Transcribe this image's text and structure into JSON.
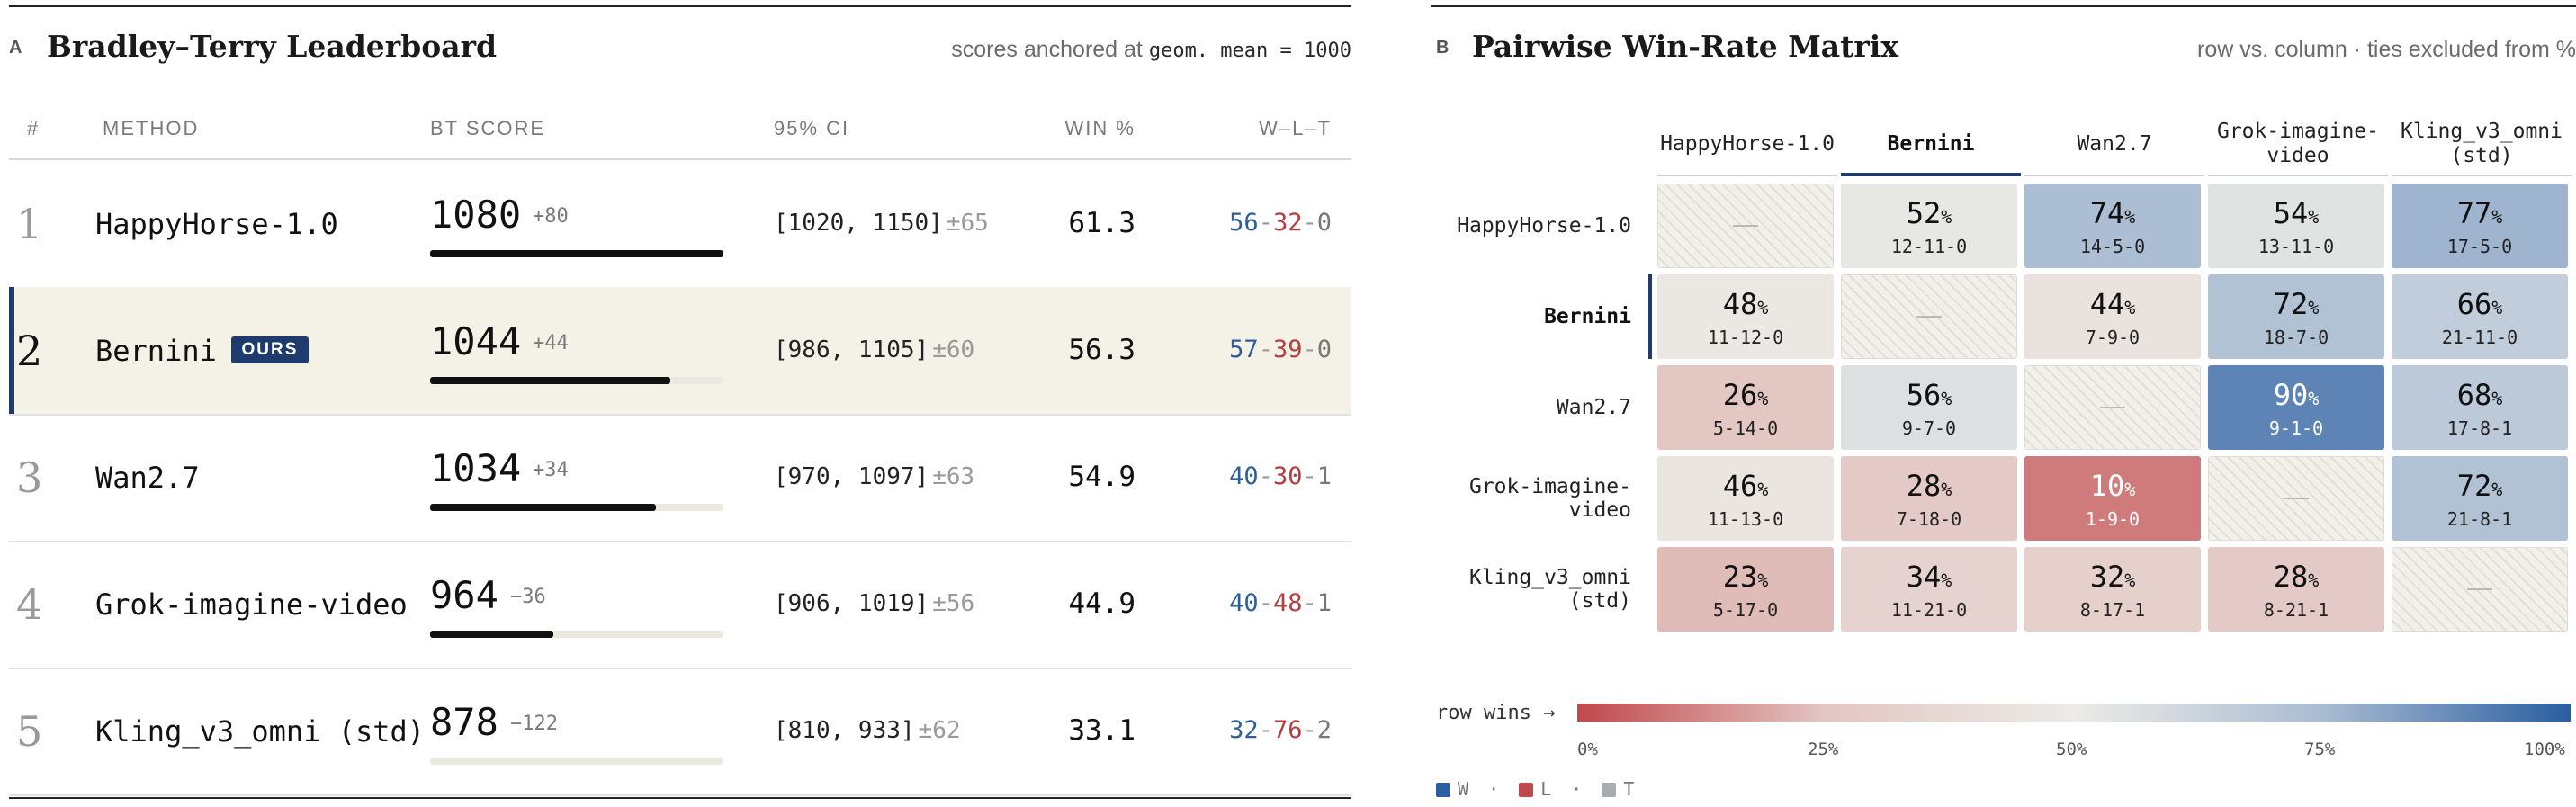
{
  "panel_a": {
    "letter": "A",
    "title": "Bradley–Terry Leaderboard",
    "note_prefix": "scores anchored at",
    "note_code": "geom. mean = 1000",
    "headers": {
      "rank": "#",
      "method": "METHOD",
      "score": "BT SCORE",
      "ci": "95% CI",
      "win": "WIN %",
      "wlt": "W–L–T"
    },
    "badge": "OURS",
    "rows": [
      {
        "rank": "1",
        "method": "HappyHorse-1.0",
        "score": "1080",
        "delta": "+80",
        "bar": 1.0,
        "ci": "[1020, 1150]",
        "pm": "±65",
        "win": "61.3",
        "w": "56",
        "l": "32",
        "t": "0",
        "ours": false
      },
      {
        "rank": "2",
        "method": "Bernini",
        "score": "1044",
        "delta": "+44",
        "bar": 0.82,
        "ci": "[986, 1105]",
        "pm": "±60",
        "win": "56.3",
        "w": "57",
        "l": "39",
        "t": "0",
        "ours": true
      },
      {
        "rank": "3",
        "method": "Wan2.7",
        "score": "1034",
        "delta": "+34",
        "bar": 0.77,
        "ci": "[970, 1097]",
        "pm": "±63",
        "win": "54.9",
        "w": "40",
        "l": "30",
        "t": "1",
        "ours": false
      },
      {
        "rank": "4",
        "method": "Grok-imagine-video",
        "score": "964",
        "delta": "−36",
        "bar": 0.42,
        "ci": "[906, 1019]",
        "pm": "±56",
        "win": "44.9",
        "w": "40",
        "l": "48",
        "t": "1",
        "ours": false
      },
      {
        "rank": "5",
        "method": "Kling_v3_omni (std)",
        "score": "878",
        "delta": "−122",
        "bar": 0.0,
        "ci": "[810, 933]",
        "pm": "±62",
        "win": "33.1",
        "w": "32",
        "l": "76",
        "t": "2",
        "ours": false
      }
    ]
  },
  "panel_b": {
    "letter": "B",
    "title": "Pairwise Win-Rate Matrix",
    "note": "row vs. column · ties excluded from %",
    "legend_label": "row wins →",
    "ticks": [
      "0%",
      "25%",
      "50%",
      "75%",
      "100%"
    ],
    "key": {
      "w": "W",
      "l": "L",
      "t": "T",
      "sep": "·"
    },
    "colors": {
      "win": "#2a5ea0",
      "loss": "#c1484c",
      "tie": "#a9acb1",
      "mid": "#ecebe6",
      "accent": "#1f3b6e"
    }
  },
  "chart_data": {
    "type": "heatmap",
    "title": "Pairwise Win-Rate Matrix",
    "rows": [
      "HappyHorse-1.0",
      "Bernini",
      "Wan2.7",
      "Grok-imagine-video",
      "Kling_v3_omni (std)"
    ],
    "row_labels": [
      [
        "HappyHorse-1.0"
      ],
      [
        "Bernini"
      ],
      [
        "Wan2.7"
      ],
      [
        "Grok-imagine-",
        "video"
      ],
      [
        "Kling_v3_omni",
        "(std)"
      ]
    ],
    "columns": [
      "HappyHorse-1.0",
      "Bernini",
      "Wan2.7",
      "Grok-imagine-video",
      "Kling_v3_omni (std)"
    ],
    "col_labels": [
      [
        "HappyHorse-1.0"
      ],
      [
        "Bernini"
      ],
      [
        "Wan2.7"
      ],
      [
        "Grok-imagine-",
        "video"
      ],
      [
        "Kling_v3_omni",
        "(std)"
      ]
    ],
    "highlight": "Bernini",
    "unit": "%",
    "diagonal": "—",
    "values": [
      [
        null,
        52,
        74,
        54,
        77
      ],
      [
        48,
        null,
        44,
        72,
        66
      ],
      [
        26,
        56,
        null,
        90,
        68
      ],
      [
        46,
        28,
        10,
        null,
        72
      ],
      [
        23,
        34,
        32,
        28,
        null
      ]
    ],
    "records": [
      [
        null,
        "12-11-0",
        "14-5-0",
        "13-11-0",
        "17-5-0"
      ],
      [
        "11-12-0",
        null,
        "7-9-0",
        "18-7-0",
        "21-11-0"
      ],
      [
        "5-14-0",
        "9-7-0",
        null,
        "9-1-0",
        "17-8-1"
      ],
      [
        "11-13-0",
        "7-18-0",
        "1-9-0",
        null,
        "21-8-1"
      ],
      [
        "5-17-0",
        "11-21-0",
        "8-17-1",
        "8-21-1",
        null
      ]
    ],
    "color_scale": {
      "min": 0,
      "max": 100
    }
  }
}
